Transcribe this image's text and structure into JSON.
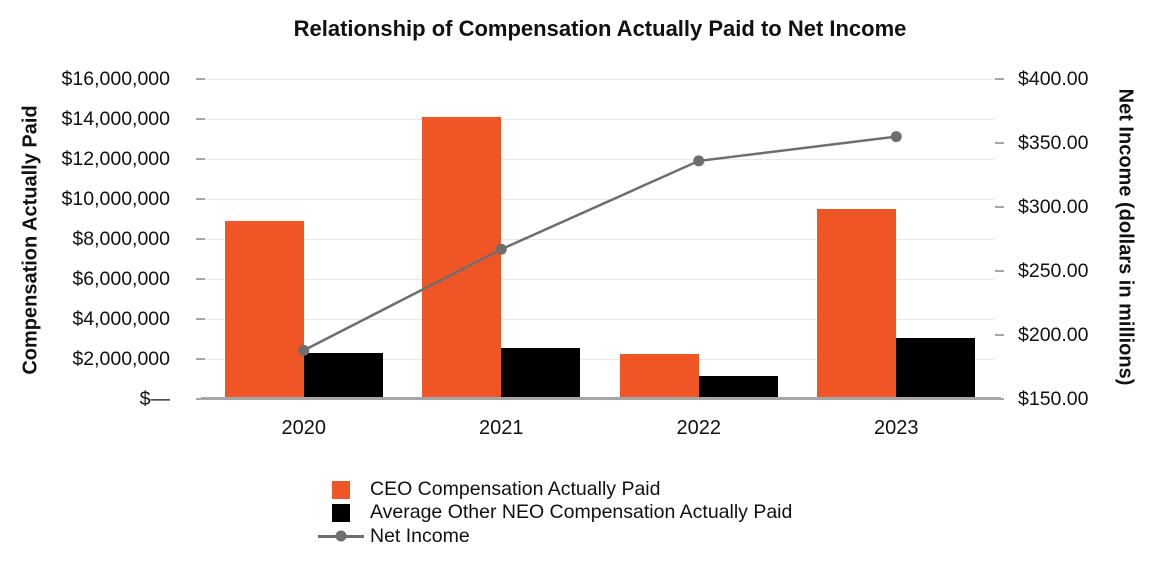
{
  "chart_data": {
    "type": "combo-bar-line",
    "title": "Relationship of Compensation Actually Paid to Net Income",
    "categories": [
      "2020",
      "2021",
      "2022",
      "2023"
    ],
    "series": [
      {
        "name": "CEO Compensation Actually Paid",
        "type": "bar",
        "axis": "left",
        "color": "#F05526",
        "values": [
          8900000,
          14100000,
          2250000,
          9500000
        ]
      },
      {
        "name": "Average Other NEO Compensation Actually Paid",
        "type": "bar",
        "axis": "left",
        "color": "#000000",
        "values": [
          2300000,
          2550000,
          1170000,
          3040000
        ]
      },
      {
        "name": "Net Income",
        "type": "line",
        "axis": "right",
        "color": "#6E6E6E",
        "values": [
          188,
          267,
          336,
          355
        ]
      }
    ],
    "left_axis": {
      "label": "Compensation Actually Paid",
      "min": 0,
      "max": 16000000,
      "tick_step": 2000000,
      "ticks": [
        "$16,000,000",
        "$14,000,000",
        "$12,000,000",
        "$10,000,000",
        "$8,000,000",
        "$6,000,000",
        "$4,000,000",
        "$2,000,000",
        "$—"
      ]
    },
    "right_axis": {
      "label": "Net Income (dollars in millions)",
      "min": 150,
      "max": 400,
      "tick_step": 50,
      "ticks": [
        "$400.00",
        "$350.00",
        "$300.00",
        "$250.00",
        "$200.00",
        "$150.00"
      ]
    },
    "grid": true,
    "legend_position": "bottom-left",
    "colors": {
      "grid": "#EAEAEA",
      "axis_line": "#A6A6A6",
      "text": "#111111"
    }
  }
}
